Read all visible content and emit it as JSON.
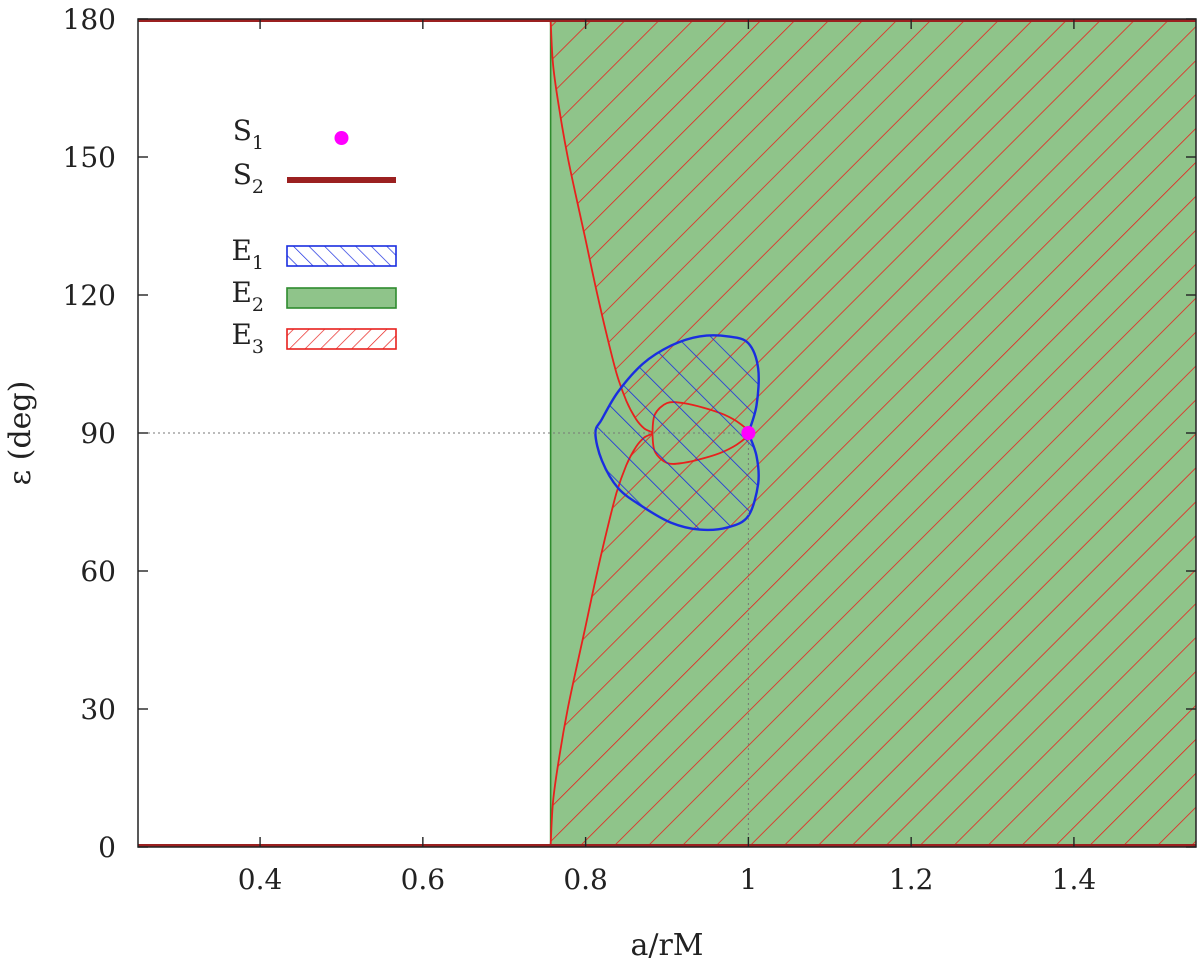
{
  "chart_data": {
    "type": "area",
    "xlabel": "a/rM",
    "ylabel": "ε (deg)",
    "xlim": [
      0.25,
      1.55
    ],
    "ylim": [
      0,
      180
    ],
    "xticks": [
      "0.4",
      "0.6",
      "0.8",
      "1",
      "1.2",
      "1.4"
    ],
    "yticks": [
      "0",
      "30",
      "60",
      "90",
      "120",
      "150",
      "180"
    ],
    "grid": false,
    "reference_lines": {
      "x": 1.0,
      "y": 90
    },
    "legend": {
      "placement": "top-left",
      "entries": [
        {
          "id": "S1",
          "label": "S",
          "sub": "1",
          "style": "point",
          "color": "#ff00ff"
        },
        {
          "id": "S2",
          "label": "S",
          "sub": "2",
          "style": "thick-line",
          "color": "#9b2020"
        },
        {
          "id": "E1",
          "label": "E",
          "sub": "1",
          "style": "hatch-backslash",
          "color": "#1a2ee0"
        },
        {
          "id": "E2",
          "label": "E",
          "sub": "2",
          "style": "solid-fill",
          "color": "#8fc48a",
          "edge": "#2e8b2e"
        },
        {
          "id": "E3",
          "label": "E",
          "sub": "3",
          "style": "hatch-slash",
          "color": "#e8211d"
        }
      ]
    },
    "series": [
      {
        "name": "S1",
        "kind": "point",
        "x": [
          1.0
        ],
        "y": [
          90
        ]
      },
      {
        "name": "S2",
        "kind": "line",
        "segments": [
          {
            "x": [
              0.25,
              1.55
            ],
            "y": [
              0,
              0
            ]
          },
          {
            "x": [
              0.25,
              1.55
            ],
            "y": [
              180,
              180
            ]
          }
        ]
      },
      {
        "name": "E2",
        "kind": "region",
        "x_min": 0.757,
        "x_max": 1.55,
        "y_min": 0,
        "y_max": 180
      },
      {
        "name": "E3",
        "kind": "region",
        "upper_boundary": {
          "x": [
            0.757,
            0.76,
            0.768,
            0.778,
            0.79,
            0.8,
            0.812,
            0.825,
            0.838,
            0.85,
            0.862,
            0.872,
            0.882
          ],
          "y": [
            180,
            170,
            160,
            150,
            140,
            132,
            122,
            112,
            103,
            97,
            93,
            91,
            90
          ]
        },
        "lower_boundary": {
          "x": [
            0.882,
            0.872,
            0.862,
            0.85,
            0.838,
            0.825,
            0.812,
            0.8,
            0.79,
            0.778,
            0.768,
            0.76,
            0.757
          ],
          "y": [
            90,
            89,
            87,
            83,
            77,
            68,
            58,
            48,
            40,
            30,
            20,
            10,
            0
          ]
        },
        "inner_loop": {
          "x": [
            0.882,
            0.885,
            0.9,
            0.92,
            0.945,
            0.97,
            0.99,
            1.0,
            0.99,
            0.97,
            0.945,
            0.92,
            0.9,
            0.885,
            0.882
          ],
          "y": [
            90,
            94,
            96.5,
            96.5,
            95.5,
            94,
            92,
            90,
            88,
            86,
            84.5,
            83.5,
            83.5,
            86,
            90
          ]
        }
      },
      {
        "name": "E1",
        "kind": "region",
        "boundary": {
          "x": [
            1.0,
            1.01,
            1.012,
            1.0,
            0.975,
            0.94,
            0.905,
            0.87,
            0.84,
            0.82,
            0.812,
            0.82,
            0.84,
            0.87,
            0.905,
            0.94,
            0.975,
            1.0,
            1.012,
            1.01,
            1.0
          ],
          "y": [
            90,
            96,
            104,
            109.5,
            111,
            111,
            109,
            105,
            99,
            93,
            90,
            84,
            78,
            74,
            70.5,
            69,
            69.5,
            72,
            79,
            85,
            90
          ]
        }
      }
    ]
  }
}
